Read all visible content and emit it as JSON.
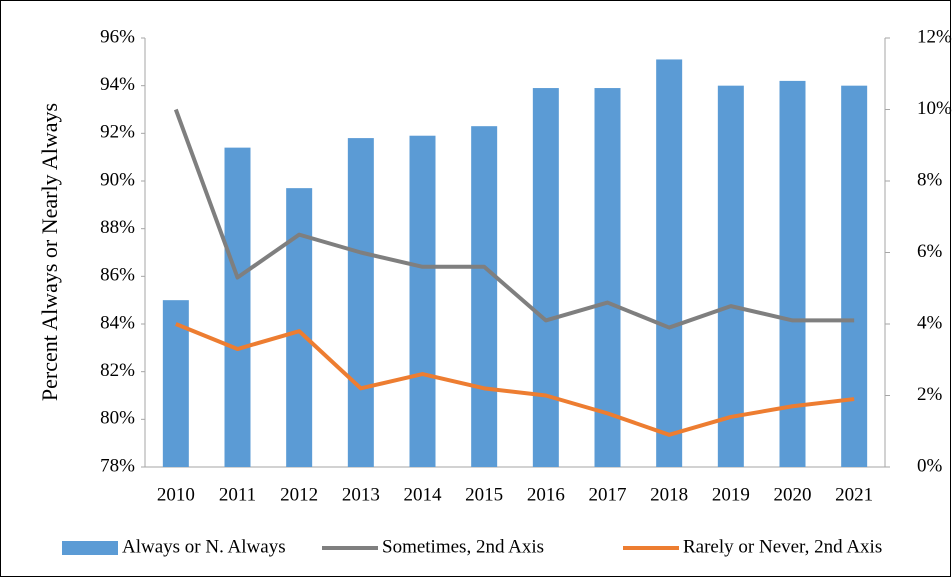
{
  "chart_data": {
    "type": "bar",
    "y_label": "Percent Always or Nearly Always",
    "categories": [
      "2010",
      "2011",
      "2012",
      "2013",
      "2014",
      "2015",
      "2016",
      "2017",
      "2018",
      "2019",
      "2020",
      "2021"
    ],
    "series": [
      {
        "name": "Always or N. Always",
        "type": "bar",
        "color": "#5b9bd5",
        "values": [
          85.0,
          91.4,
          89.7,
          91.8,
          91.9,
          92.3,
          93.9,
          93.9,
          95.1,
          94.0,
          94.2,
          94.0
        ]
      },
      {
        "name": "Sometimes, 2nd Axis",
        "type": "line",
        "axis": "y2",
        "color": "#7f7f7f",
        "values": [
          10.0,
          5.3,
          6.5,
          6.0,
          5.6,
          5.6,
          4.1,
          4.6,
          3.9,
          4.5,
          4.1,
          4.1
        ]
      },
      {
        "name": "Rarely or Never, 2nd Axis",
        "type": "line",
        "axis": "y2",
        "color": "#ed7d31",
        "values": [
          4.0,
          3.3,
          3.8,
          2.2,
          2.6,
          2.2,
          2.0,
          1.5,
          0.9,
          1.4,
          1.7,
          1.9
        ]
      }
    ],
    "ylim": [
      78,
      96
    ],
    "yticks": [
      {
        "value": 78,
        "label": "78%"
      },
      {
        "value": 80,
        "label": "80%"
      },
      {
        "value": 82,
        "label": "82%"
      },
      {
        "value": 84,
        "label": "84%"
      },
      {
        "value": 86,
        "label": "86%"
      },
      {
        "value": 88,
        "label": "88%"
      },
      {
        "value": 90,
        "label": "90%"
      },
      {
        "value": 92,
        "label": "92%"
      },
      {
        "value": 94,
        "label": "94%"
      },
      {
        "value": 96,
        "label": "96%"
      }
    ],
    "y2lim": [
      0,
      12
    ],
    "y2ticks": [
      {
        "value": 0,
        "label": "0%"
      },
      {
        "value": 2,
        "label": "2%"
      },
      {
        "value": 4,
        "label": "4%"
      },
      {
        "value": 6,
        "label": "6%"
      },
      {
        "value": 8,
        "label": "8%"
      },
      {
        "value": 10,
        "label": "10%"
      },
      {
        "value": 12,
        "label": "12%"
      }
    ],
    "grid": false,
    "legend": "bottom"
  }
}
